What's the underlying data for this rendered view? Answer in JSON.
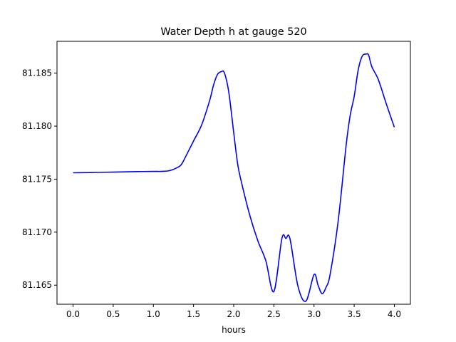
{
  "chart_data": {
    "type": "line",
    "title": "Water Depth h at gauge 520",
    "xlabel": "hours",
    "ylabel": "",
    "xlim": [
      -0.2,
      4.2
    ],
    "ylim": [
      81.1632,
      81.188
    ],
    "xticks": [
      0.0,
      0.5,
      1.0,
      1.5,
      2.0,
      2.5,
      3.0,
      3.5,
      4.0
    ],
    "xtick_labels": [
      "0.0",
      "0.5",
      "1.0",
      "1.5",
      "2.0",
      "2.5",
      "3.0",
      "3.5",
      "4.0"
    ],
    "yticks": [
      81.165,
      81.17,
      81.175,
      81.18,
      81.185
    ],
    "ytick_labels": [
      "81.165",
      "81.170",
      "81.175",
      "81.180",
      "81.185"
    ],
    "grid": false,
    "series": [
      {
        "color": "#0000ff",
        "x": [
          0.0,
          0.2,
          0.4,
          0.6,
          0.8,
          1.0,
          1.1,
          1.2,
          1.3,
          1.35,
          1.4,
          1.5,
          1.6,
          1.7,
          1.75,
          1.8,
          1.85,
          1.88,
          1.92,
          1.95,
          2.0,
          2.05,
          2.1,
          2.2,
          2.3,
          2.4,
          2.5,
          2.6,
          2.65,
          2.7,
          2.8,
          2.9,
          3.0,
          3.05,
          3.1,
          3.15,
          3.2,
          3.3,
          3.4,
          3.45,
          3.5,
          3.55,
          3.6,
          3.65,
          3.68,
          3.72,
          3.8,
          3.9,
          4.0
        ],
        "y": [
          81.1756,
          81.17562,
          81.17565,
          81.17568,
          81.17571,
          81.17573,
          81.17573,
          81.1758,
          81.1761,
          81.1764,
          81.1771,
          81.1786,
          81.1801,
          81.1824,
          81.1839,
          81.1849,
          81.18515,
          81.1851,
          81.184,
          81.1826,
          81.1794,
          81.1764,
          81.1746,
          81.1716,
          81.1692,
          81.1673,
          81.1644,
          81.1694,
          81.1694,
          81.1694,
          81.1649,
          81.1635,
          81.166,
          81.165,
          81.1642,
          81.1648,
          81.166,
          81.171,
          81.1782,
          81.181,
          81.1828,
          81.1853,
          81.1866,
          81.1868,
          81.1867,
          81.1856,
          81.1844,
          81.1821,
          81.1799
        ]
      }
    ]
  }
}
